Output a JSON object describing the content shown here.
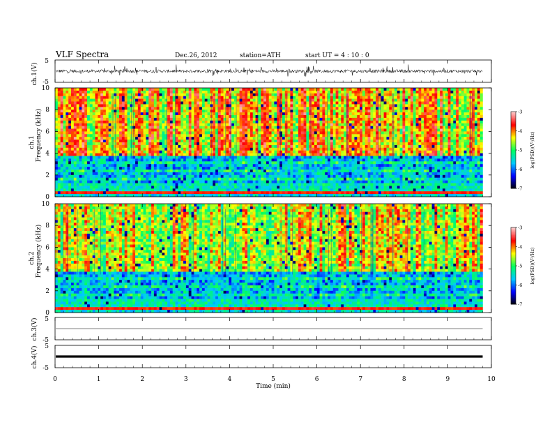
{
  "header": {
    "title": "VLF  Spectra",
    "date": "Dec.26, 2012",
    "station": "station=ATH",
    "start": "start  UT  =   4  : 10 : 0"
  },
  "chart_data": [
    {
      "type": "line",
      "panel": "ch1-waveform",
      "ylabel": "ch.1(V)",
      "ylim": [
        -5,
        5
      ],
      "y_ticks": [
        "5",
        "-5"
      ],
      "xlim": [
        0,
        10
      ],
      "data_end_min": 9.8,
      "description_level": "noisy waveform centred near 0 V with spikes up to about +2.5 V and down to about -2 V"
    },
    {
      "type": "heatmap",
      "panel": "ch1-spectrogram",
      "ylabel_channel": "ch.1",
      "ylabel": "Frequency  (kHz)",
      "ylim": [
        0,
        10
      ],
      "y_ticks": [
        "0",
        "2",
        "4",
        "6",
        "8",
        "10"
      ],
      "xlim": [
        0,
        10
      ],
      "colorbar": {
        "label": "log(PSD)(V²/Hz)",
        "range": [
          -7,
          -3
        ],
        "ticks": [
          "-3",
          "-4",
          "-5",
          "-6",
          "-7"
        ]
      }
    },
    {
      "type": "heatmap",
      "panel": "ch2-spectrogram",
      "ylabel_channel": "ch.2",
      "ylabel": "Frequency  (kHz)",
      "ylim": [
        0,
        10
      ],
      "y_ticks": [
        "0",
        "2",
        "4",
        "6",
        "8",
        "10"
      ],
      "xlim": [
        0,
        10
      ],
      "colorbar": {
        "label": "log(PSD)(V²/Hz)",
        "range": [
          -7,
          -3
        ],
        "ticks": [
          "-3",
          "-4",
          "-5",
          "-6",
          "-7"
        ]
      }
    },
    {
      "type": "line",
      "panel": "ch3-waveform",
      "ylabel": "ch.3(V)",
      "ylim": [
        -5,
        5
      ],
      "y_ticks": [
        "5",
        "-5"
      ],
      "level": 0
    },
    {
      "type": "line",
      "panel": "ch4-waveform",
      "ylabel": "ch.4(V)",
      "ylim": [
        -5,
        5
      ],
      "y_ticks": [
        "5",
        "-5"
      ],
      "level": 0
    }
  ],
  "xaxis": {
    "label": "Time  (min)",
    "ticks": [
      "0",
      "1",
      "2",
      "3",
      "4",
      "5",
      "6",
      "7",
      "8",
      "9",
      "10"
    ]
  },
  "colors": {
    "colormap": [
      "#000000",
      "#0000ff",
      "#00c8ff",
      "#00ff60",
      "#ffff00",
      "#ff0000",
      "#ffc8c8"
    ]
  }
}
